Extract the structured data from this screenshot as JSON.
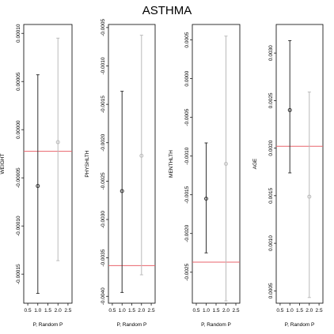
{
  "title": "ASTHMA",
  "colors": {
    "series_dark": "#333333",
    "series_light": "#bbbbbb",
    "reference_line": "#e8636b",
    "frame": "#000000"
  },
  "chart_data": [
    {
      "type": "scatter",
      "ylabel": "WEIGHT",
      "xlabel": "P, Random P",
      "xlim": [
        0.3,
        2.7
      ],
      "xticks": [
        "0.5",
        "1.0",
        "1.5",
        "2.0",
        "2.5"
      ],
      "ylim": [
        -0.0001802,
        0.0001092
      ],
      "yticks": [
        "-0.00015",
        "-0.00010",
        "-0.00005",
        "0.00000",
        "0.00005",
        "0.00010"
      ],
      "reference_line": -2.25e-05,
      "series": [
        {
          "x": 1,
          "estimate": -5.85e-05,
          "lower": -0.00017,
          "upper": 5.7e-05
        },
        {
          "x": 2,
          "estimate": -1.3e-05,
          "lower": -0.000136,
          "upper": 9.5e-05
        }
      ]
    },
    {
      "type": "scatter",
      "ylabel": "PHYSHLTH",
      "xlabel": "P, Random P",
      "xlim": [
        0.3,
        2.7
      ],
      "xticks": [
        "0.5",
        "1.0",
        "1.5",
        "2.0",
        "2.5"
      ],
      "ylim": [
        -0.00409,
        -0.00046
      ],
      "yticks": [
        "-0.0040",
        "-0.0035",
        "-0.0030",
        "-0.0025",
        "-0.0020",
        "-0.0015",
        "-0.0010",
        "-0.0005"
      ],
      "reference_line": -0.0036,
      "series": [
        {
          "x": 1,
          "estimate": -0.00263,
          "lower": -0.00395,
          "upper": -0.00133
        },
        {
          "x": 2,
          "estimate": -0.00217,
          "lower": -0.00372,
          "upper": -0.0006
        }
      ]
    },
    {
      "type": "scatter",
      "ylabel": "MENTHLTH",
      "xlabel": "P, Random P",
      "xlim": [
        0.3,
        2.7
      ],
      "xticks": [
        "0.5",
        "1.0",
        "1.5",
        "2.0",
        "2.5"
      ],
      "ylim": [
        -0.0029,
        0.0007
      ],
      "yticks": [
        "-0.0025",
        "-0.0020",
        "-0.0015",
        "-0.0010",
        "-0.0005",
        "0.0000",
        "0.0005"
      ],
      "reference_line": -0.00237,
      "series": [
        {
          "x": 1,
          "estimate": -0.00155,
          "lower": -0.00225,
          "upper": -0.00083
        },
        {
          "x": 2,
          "estimate": -0.0011,
          "lower": -0.00287,
          "upper": 0.00055
        }
      ]
    },
    {
      "type": "scatter",
      "ylabel": "AGE",
      "xlabel": "P, Random P",
      "xlim": [
        0.3,
        2.7
      ],
      "xticks": [
        "0.5",
        "1.0",
        "1.5",
        "2.0",
        "2.5"
      ],
      "ylim": [
        0.00037,
        0.0033
      ],
      "yticks": [
        "0.0005",
        "0.0010",
        "0.0015",
        "0.0020",
        "0.0025",
        "0.0030"
      ],
      "reference_line": 0.00202,
      "series": [
        {
          "x": 1,
          "estimate": 0.0024,
          "lower": 0.00174,
          "upper": 0.00313
        },
        {
          "x": 2,
          "estimate": 0.00149,
          "lower": 0.00043,
          "upper": 0.00259
        }
      ]
    }
  ]
}
